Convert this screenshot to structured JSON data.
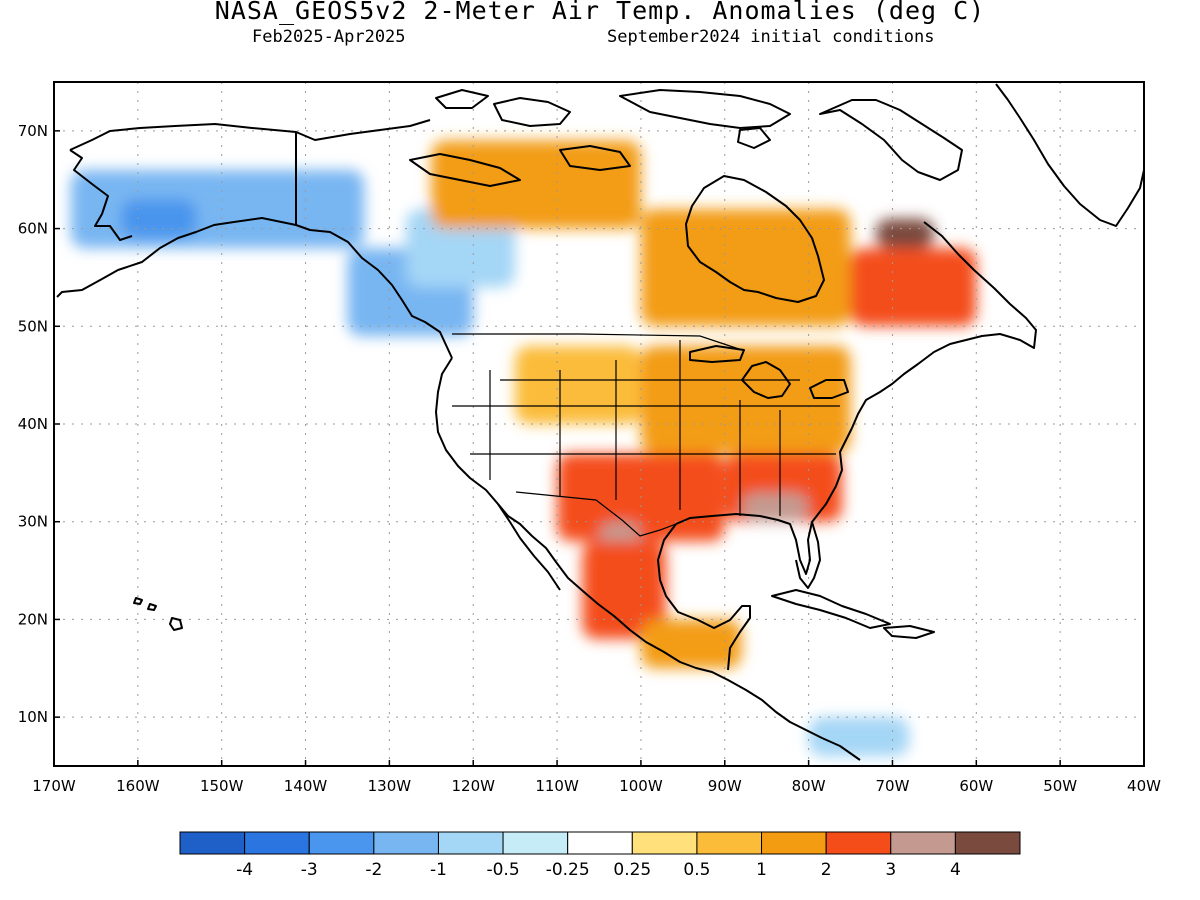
{
  "header": {
    "title": "NASA_GEOS5v2 2-Meter Air Temp. Anomalies (deg C)",
    "period": "Feb2025-Apr2025",
    "conditions": "September2024 initial conditions"
  },
  "axes": {
    "lat_labels": [
      "70N",
      "60N",
      "50N",
      "40N",
      "30N",
      "20N",
      "10N"
    ],
    "lon_labels": [
      "170W",
      "160W",
      "150W",
      "140W",
      "130W",
      "120W",
      "110W",
      "100W",
      "90W",
      "80W",
      "70W",
      "60W",
      "50W",
      "40W"
    ]
  },
  "colorbar": {
    "labels": [
      "-4",
      "-3",
      "-2",
      "-1",
      "-0.5",
      "-0.25",
      "0.25",
      "0.5",
      "1",
      "2",
      "3",
      "4"
    ],
    "colors": [
      "#1f5fc8",
      "#2b75e0",
      "#4a95ee",
      "#78b6f2",
      "#a4d6f6",
      "#c6ecf8",
      "#ffffff",
      "#ffe07a",
      "#fbbc3a",
      "#f39c12",
      "#f44d1a",
      "#c49a90",
      "#7a4a3e"
    ]
  },
  "chart_data": {
    "type": "heatmap",
    "title": "NASA_GEOS5v2 2-Meter Air Temp. Anomalies (deg C)",
    "subtitle": [
      "Feb2025-Apr2025",
      "September2024 initial conditions"
    ],
    "units": "deg C",
    "xlim": [
      -170,
      -40
    ],
    "ylim": [
      5,
      75
    ],
    "levels": [
      -4,
      -3,
      -2,
      -1,
      -0.5,
      -0.25,
      0.25,
      0.5,
      1,
      2,
      3,
      4
    ],
    "regions": [
      {
        "lon": [
          -168,
          -133
        ],
        "lat": [
          58,
          66
        ],
        "value": -1.5
      },
      {
        "lon": [
          -162,
          -153
        ],
        "lat": [
          59,
          63
        ],
        "value": -2.5
      },
      {
        "lon": [
          -135,
          -120
        ],
        "lat": [
          49,
          58
        ],
        "value": -1.2
      },
      {
        "lon": [
          -128,
          -115
        ],
        "lat": [
          54,
          62
        ],
        "value": -0.6
      },
      {
        "lon": [
          -125,
          -100
        ],
        "lat": [
          60,
          69
        ],
        "value": 1.5
      },
      {
        "lon": [
          -100,
          -75
        ],
        "lat": [
          50,
          62
        ],
        "value": 1.5
      },
      {
        "lon": [
          -75,
          -60
        ],
        "lat": [
          50,
          58
        ],
        "value": 2.5
      },
      {
        "lon": [
          -72,
          -65
        ],
        "lat": [
          58,
          61
        ],
        "value": 4.5
      },
      {
        "lon": [
          -115,
          -100
        ],
        "lat": [
          40,
          48
        ],
        "value": 0.8
      },
      {
        "lon": [
          -100,
          -75
        ],
        "lat": [
          37,
          48
        ],
        "value": 1.5
      },
      {
        "lon": [
          -110,
          -90
        ],
        "lat": [
          28,
          37
        ],
        "value": 2.5
      },
      {
        "lon": [
          -90,
          -76
        ],
        "lat": [
          30,
          37
        ],
        "value": 2.5
      },
      {
        "lon": [
          -105,
          -100
        ],
        "lat": [
          26,
          30
        ],
        "value": 3.5
      },
      {
        "lon": [
          -88,
          -80
        ],
        "lat": [
          30,
          33
        ],
        "value": 3.5
      },
      {
        "lon": [
          -107,
          -97
        ],
        "lat": [
          18,
          28
        ],
        "value": 2.5
      },
      {
        "lon": [
          -100,
          -88
        ],
        "lat": [
          15,
          20
        ],
        "value": 1.2
      },
      {
        "lon": [
          -80,
          -68
        ],
        "lat": [
          6,
          10
        ],
        "value": -1.0
      }
    ]
  }
}
